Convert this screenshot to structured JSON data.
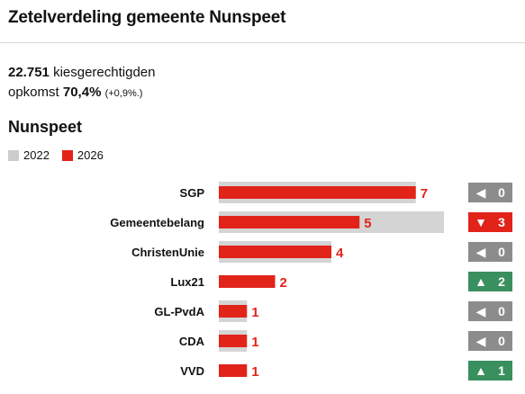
{
  "header": {
    "title": "Zetelverdeling gemeente Nunspeet"
  },
  "stats": {
    "voters_value": "22.751",
    "voters_label": "kiesgerechtigden",
    "turnout_label": "opkomst",
    "turnout_value": "70,4%",
    "turnout_change": "(+0,9%.)"
  },
  "region": {
    "title": "Nunspeet"
  },
  "legend": [
    {
      "label": "2022",
      "color": "#cccccc"
    },
    {
      "label": "2026",
      "color": "#e2231a"
    }
  ],
  "colors": {
    "bar_2022": "#d4d4d4",
    "bar_2026": "#e2231a",
    "badge_neutral": "#8c8c8c",
    "badge_up": "#3a8f5f",
    "badge_down": "#e2231a"
  },
  "chart_data": {
    "type": "bar",
    "orientation": "horizontal",
    "categories": [
      "SGP",
      "Gemeentebelang",
      "ChristenUnie",
      "Lux21",
      "GL-PvdA",
      "CDA",
      "VVD"
    ],
    "series": [
      {
        "name": "2022",
        "values": [
          7,
          8,
          4,
          0,
          1,
          1,
          0
        ]
      },
      {
        "name": "2026",
        "values": [
          7,
          5,
          4,
          2,
          1,
          1,
          1
        ]
      }
    ],
    "changes": [
      {
        "direction": "neutral",
        "symbol": "◀",
        "value": "0"
      },
      {
        "direction": "down",
        "symbol": "▼",
        "value": "3"
      },
      {
        "direction": "neutral",
        "symbol": "◀",
        "value": "0"
      },
      {
        "direction": "up",
        "symbol": "▲",
        "value": "2"
      },
      {
        "direction": "neutral",
        "symbol": "◀",
        "value": "0"
      },
      {
        "direction": "neutral",
        "symbol": "◀",
        "value": "0"
      },
      {
        "direction": "up",
        "symbol": "▲",
        "value": "1"
      }
    ],
    "xlim": [
      0,
      8
    ]
  }
}
